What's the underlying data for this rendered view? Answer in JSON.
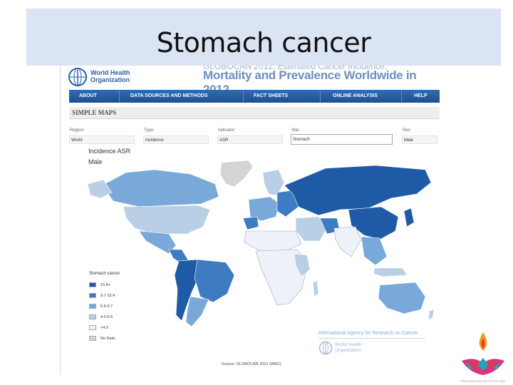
{
  "slide": {
    "title": "Stomach cancer"
  },
  "site": {
    "org_line1": "World Health",
    "org_line2": "Organization",
    "hero_subtitle": "GLOBOCAN 2012: Estimated Cancer Incidence,",
    "hero_title": "Mortality and Prevalence Worldwide in 2012"
  },
  "nav": {
    "items": [
      "ABOUT",
      "DATA SOURCES AND METHODS",
      "FACT SHEETS",
      "ONLINE ANALYSIS",
      "HELP"
    ]
  },
  "section": {
    "title": "SIMPLE MAPS"
  },
  "filters": {
    "region": {
      "label": "Region:",
      "value": "World"
    },
    "type": {
      "label": "Type:",
      "value": "Incidence"
    },
    "indicator": {
      "label": "Indicator:",
      "value": "ASR"
    },
    "site": {
      "label": "Site:",
      "value": "Stomach"
    },
    "sex": {
      "label": "Sex:",
      "value": "Male"
    }
  },
  "map": {
    "title": "Incidence ASR",
    "subtitle": "Male",
    "legend": {
      "title": "Stomach cancer",
      "items": [
        {
          "label": "15.4+",
          "color": "#1f5aa6"
        },
        {
          "label": "9.7-15.4",
          "color": "#3d7cc0"
        },
        {
          "label": "6.6-9.7",
          "color": "#79a9d9"
        },
        {
          "label": "4.0-6.6",
          "color": "#b9cfe6"
        },
        {
          "label": "<4.0",
          "color": "#eef2f8"
        },
        {
          "label": "No Data",
          "color": "#d4d4d4"
        }
      ]
    }
  },
  "footer": {
    "agency": "International Agency for Research on Cancer",
    "org_line1": "World Health",
    "org_line2": "Organization",
    "source": "Source: GLOBOCAN 2012 (IARC)"
  },
  "branding": {
    "tagline": "PREVENTION INSTITUTE INC",
    "colors": [
      "#e63b2e",
      "#f29a1f",
      "#d9357a",
      "#23a3b8"
    ]
  }
}
